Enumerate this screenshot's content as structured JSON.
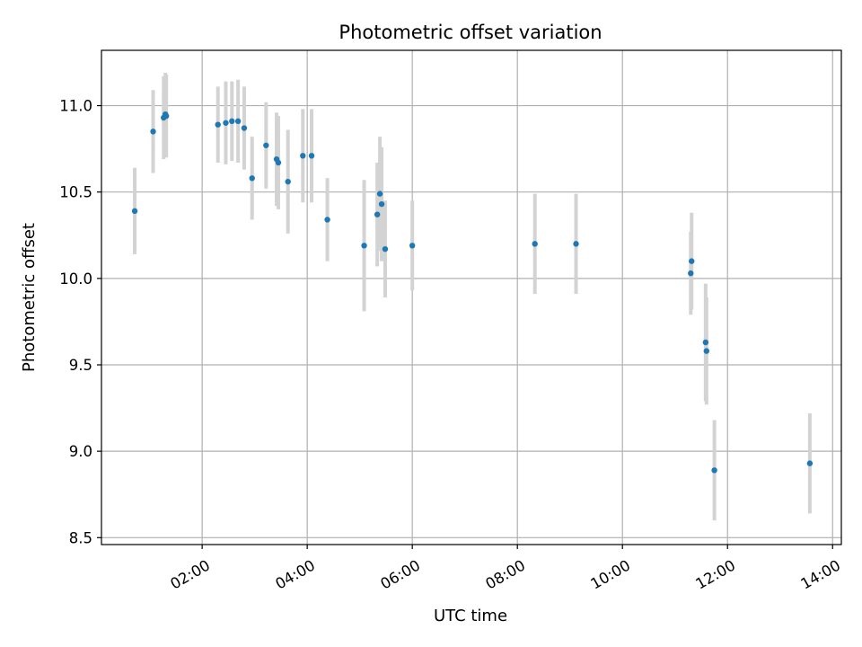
{
  "chart_data": {
    "type": "scatter",
    "title": "Photometric offset variation",
    "xlabel": "UTC time",
    "ylabel": "Photometric offset",
    "x_ticks": [
      "02:00",
      "04:00",
      "06:00",
      "08:00",
      "10:00",
      "12:00",
      "14:00"
    ],
    "x_tick_values": [
      "02:00",
      "04:00",
      "06:00",
      "08:00",
      "10:00",
      "12:00",
      "14:00"
    ],
    "y_ticks": [
      "8.5",
      "9.0",
      "9.5",
      "10.0",
      "10.5",
      "11.0"
    ],
    "y_tick_values": [
      8.5,
      9.0,
      9.5,
      10.0,
      10.5,
      11.0
    ],
    "xlim": [
      "00:05",
      "14:10"
    ],
    "ylim": [
      8.46,
      11.32
    ],
    "grid": true,
    "point_color": "#1f77b4",
    "errorbar_color": "#d3d3d3",
    "series": [
      {
        "x": [
          "00:43",
          "01:04",
          "01:16",
          "01:18",
          "01:19",
          "02:18",
          "02:27",
          "02:34",
          "02:41",
          "02:48",
          "02:57",
          "03:13",
          "03:25",
          "03:27",
          "03:38",
          "03:55",
          "04:05",
          "04:23",
          "05:05",
          "05:20",
          "05:23",
          "05:25",
          "05:29",
          "06:00",
          "08:20",
          "09:07",
          "11:18",
          "11:19",
          "11:35",
          "11:36",
          "11:45",
          "13:34"
        ],
        "y": [
          10.39,
          10.85,
          10.93,
          10.95,
          10.94,
          10.89,
          10.9,
          10.91,
          10.91,
          10.87,
          10.58,
          10.77,
          10.69,
          10.67,
          10.56,
          10.71,
          10.71,
          10.34,
          10.19,
          10.37,
          10.49,
          10.43,
          10.17,
          10.19,
          10.2,
          10.2,
          10.03,
          10.1,
          9.63,
          9.58,
          8.89,
          8.93
        ],
        "yerr": [
          0.25,
          0.24,
          0.24,
          0.24,
          0.24,
          0.22,
          0.24,
          0.23,
          0.24,
          0.24,
          0.24,
          0.25,
          0.27,
          0.27,
          0.3,
          0.27,
          0.27,
          0.24,
          0.38,
          0.3,
          0.33,
          0.33,
          0.28,
          0.26,
          0.29,
          0.29,
          0.24,
          0.28,
          0.34,
          0.31,
          0.29,
          0.29
        ]
      }
    ]
  }
}
